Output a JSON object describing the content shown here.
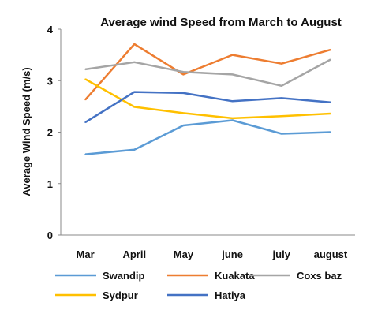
{
  "chart_data": {
    "type": "line",
    "title": "Average wind Speed from March to August",
    "ylabel": "Average Wind Speed (m/s)",
    "xlabel": "",
    "categories": [
      "Mar",
      "April",
      "May",
      "june",
      "july",
      "august"
    ],
    "ylim": [
      0,
      4
    ],
    "yticks": [
      "0",
      "1",
      "2",
      "3",
      "4"
    ],
    "grid": false,
    "legend_position": "bottom",
    "series": [
      {
        "name": "Swandip",
        "color": "#5b9bd5",
        "values": [
          1.57,
          1.66,
          2.13,
          2.23,
          1.97,
          2.0
        ]
      },
      {
        "name": "Kuakata",
        "color": "#ed7d31",
        "values": [
          2.63,
          3.71,
          3.12,
          3.5,
          3.33,
          3.6
        ]
      },
      {
        "name": "Coxs baz",
        "color": "#a5a5a5",
        "values": [
          3.22,
          3.36,
          3.17,
          3.12,
          2.9,
          3.41
        ]
      },
      {
        "name": "Sydpur",
        "color": "#ffc000",
        "values": [
          3.03,
          2.49,
          2.37,
          2.27,
          2.31,
          2.36
        ]
      },
      {
        "name": "Hatiya",
        "color": "#4472c4",
        "values": [
          2.19,
          2.78,
          2.76,
          2.6,
          2.66,
          2.58
        ]
      }
    ]
  }
}
